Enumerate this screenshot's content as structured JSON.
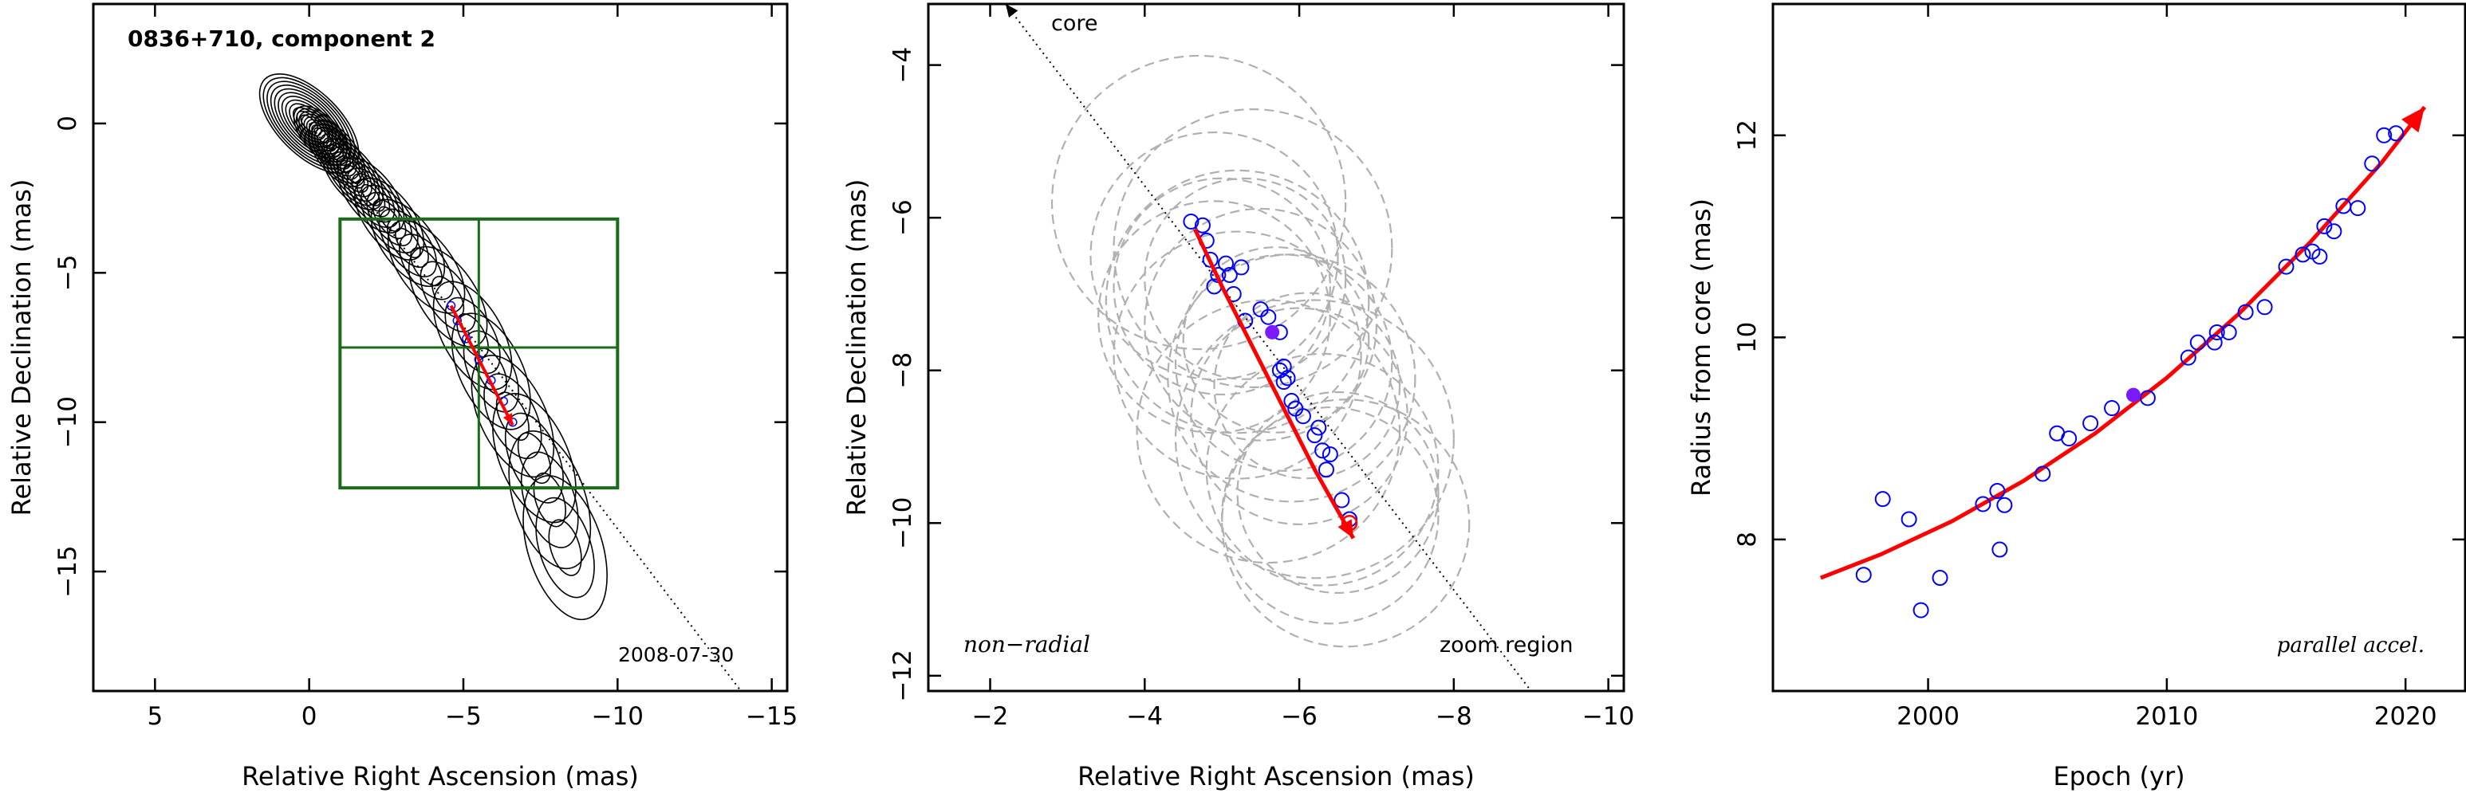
{
  "chart_data": [
    {
      "type": "contour",
      "title": "0836+710, component 2",
      "xlabel": "Relative Right Ascension (mas)",
      "ylabel": "Relative Declination (mas)",
      "xlim": [
        7,
        -15.5
      ],
      "ylim": [
        -19,
        4
      ],
      "xticks": [
        5,
        0,
        -5,
        -10,
        -15
      ],
      "xtick_labels": [
        "5",
        "0",
        "−5",
        "−10",
        "−15"
      ],
      "yticks": [
        0,
        -5,
        -10,
        -15
      ],
      "ytick_labels": [
        "0",
        "−5",
        "−10",
        "−15"
      ],
      "grid": false,
      "annotation": "2008-07-30",
      "jet_direction_line": {
        "from": [
          0,
          0
        ],
        "to": [
          -14,
          -19
        ]
      },
      "zoom_box": {
        "x": [
          -1,
          -10
        ],
        "y": [
          -3.2,
          -12.2
        ],
        "cross": {
          "x": -5.5,
          "y": -7.5
        }
      },
      "jet_ridge": {
        "x": [
          0,
          -0.4,
          -0.9,
          -1.4,
          -2.0,
          -2.6,
          -3.2,
          -3.8,
          -4.5,
          -5.3,
          -5.9,
          -6.6,
          -7.3,
          -7.8,
          -8.3
        ],
        "y": [
          0,
          -0.4,
          -1.0,
          -1.7,
          -2.4,
          -3.2,
          -4.0,
          -4.8,
          -5.8,
          -7.1,
          -8.3,
          -9.8,
          -11.2,
          -12.6,
          -14.2
        ]
      },
      "contour_levels": 12,
      "track": {
        "x": [
          -4.6,
          -4.8,
          -5.1,
          -5.5,
          -5.9,
          -6.3,
          -6.6
        ],
        "y": [
          -6.1,
          -6.6,
          -7.2,
          -7.9,
          -8.6,
          -9.3,
          -10.0
        ]
      },
      "arrow": {
        "x": [
          -4.6,
          -5.0,
          -5.5,
          -6.0,
          -6.6
        ],
        "y": [
          -6.1,
          -6.9,
          -7.9,
          -8.9,
          -10.1
        ],
        "color": "#ff0000"
      }
    },
    {
      "type": "scatter",
      "xlabel": "Relative Right Ascension (mas)",
      "ylabel": "Relative Declination (mas)",
      "xlim": [
        -1.2,
        -10.2
      ],
      "ylim": [
        -12.2,
        -3.2
      ],
      "xticks": [
        -2,
        -4,
        -6,
        -8,
        -10
      ],
      "xtick_labels": [
        "−2",
        "−4",
        "−6",
        "−8",
        "−10"
      ],
      "yticks": [
        -4,
        -6,
        -8,
        -10,
        -12
      ],
      "ytick_labels": [
        "−4",
        "−6",
        "−8",
        "−10",
        "−12"
      ],
      "grid": false,
      "annotations": [
        "core",
        "non−radial",
        "zoom region"
      ],
      "core_line": {
        "from": [
          -2.2,
          -3.2
        ],
        "to": [
          -9.0,
          -12.2
        ]
      },
      "points": {
        "x": [
          -4.6,
          -4.75,
          -4.8,
          -4.85,
          -4.9,
          -4.95,
          -5.05,
          -5.1,
          -5.15,
          -5.25,
          -5.3,
          -5.5,
          -5.6,
          -5.75,
          -5.75,
          -5.8,
          -5.8,
          -5.85,
          -5.9,
          -5.95,
          -6.05,
          -6.2,
          -6.25,
          -6.3,
          -6.35,
          -6.4,
          -6.55,
          -6.65
        ],
        "y": [
          -6.05,
          -6.1,
          -6.3,
          -6.55,
          -6.9,
          -6.75,
          -6.6,
          -6.75,
          -7.0,
          -6.65,
          -7.35,
          -7.2,
          -7.3,
          -7.5,
          -8.0,
          -7.95,
          -8.15,
          -8.1,
          -8.4,
          -8.5,
          -8.6,
          -8.85,
          -8.75,
          -9.05,
          -9.3,
          -9.1,
          -9.7,
          -9.95
        ],
        "color": "#0000ff"
      },
      "highlight_point": {
        "x": -5.65,
        "y": -7.5,
        "color": "#7a1bff"
      },
      "end_point": {
        "x": -6.65,
        "y": -10.0,
        "color": "#ff0000"
      },
      "uncertainty_circles": {
        "x": [
          -4.7,
          -4.9,
          -5.0,
          -5.2,
          -5.3,
          -5.5,
          -5.7,
          -5.9,
          -6.0,
          -6.2,
          -6.3,
          -6.5,
          -6.6,
          -5.4,
          -5.8,
          -6.1,
          -4.9,
          -5.6,
          -6.4,
          -5.2
        ],
        "y": [
          -5.8,
          -6.5,
          -6.9,
          -7.1,
          -6.8,
          -7.4,
          -7.6,
          -8.1,
          -8.6,
          -8.9,
          -9.3,
          -9.6,
          -10.0,
          -6.4,
          -7.9,
          -8.2,
          -7.3,
          -8.8,
          -9.9,
          -7.8
        ],
        "r": [
          1.9,
          1.6,
          1.4,
          1.7,
          1.3,
          1.5,
          1.2,
          1.6,
          1.4,
          1.8,
          1.5,
          1.3,
          1.6,
          1.8,
          1.4,
          1.2,
          1.5,
          1.7,
          1.4,
          1.6
        ],
        "color": "#b0b0b0"
      },
      "arrow": {
        "x": [
          -4.65,
          -5.0,
          -5.4,
          -5.8,
          -6.2,
          -6.7
        ],
        "y": [
          -6.15,
          -6.9,
          -7.7,
          -8.5,
          -9.3,
          -10.2
        ],
        "color": "#ff0000"
      }
    },
    {
      "type": "scatter",
      "xlabel": "Epoch (yr)",
      "ylabel": "Radius from core (mas)",
      "xlim": [
        1993.5,
        2022.5
      ],
      "ylim": [
        6.5,
        13.3
      ],
      "xticks": [
        2000,
        2010,
        2020
      ],
      "xtick_labels": [
        "2000",
        "2010",
        "2020"
      ],
      "yticks": [
        8,
        10,
        12
      ],
      "ytick_labels": [
        "8",
        "10",
        "12"
      ],
      "grid": false,
      "annotation": "parallel accel.",
      "points": {
        "x": [
          1997.3,
          1998.1,
          1999.2,
          1999.7,
          2000.5,
          2002.3,
          2002.9,
          2003.0,
          2003.2,
          2004.8,
          2005.4,
          2005.9,
          2006.8,
          2007.7,
          2009.2,
          2010.9,
          2011.3,
          2012.0,
          2012.1,
          2012.6,
          2013.3,
          2014.1,
          2015.0,
          2015.7,
          2016.1,
          2016.4,
          2016.6,
          2017.0,
          2017.4,
          2018.0,
          2018.6,
          2019.1,
          2019.6
        ],
        "y": [
          7.65,
          8.4,
          8.2,
          7.3,
          7.62,
          8.35,
          8.48,
          7.9,
          8.34,
          8.65,
          9.05,
          9.0,
          9.15,
          9.3,
          9.4,
          9.8,
          9.95,
          9.95,
          10.05,
          10.05,
          10.25,
          10.3,
          10.7,
          10.82,
          10.85,
          10.8,
          11.1,
          11.05,
          11.3,
          11.28,
          11.72,
          12.0,
          12.02
        ],
        "color": "#0000ff"
      },
      "highlight_point": {
        "x": 2008.6,
        "y": 9.43,
        "color": "#7a1bff"
      },
      "fit_curve": {
        "x": [
          1995.5,
          1998,
          2001,
          2004,
          2007,
          2010,
          2013,
          2016,
          2019,
          2020.8
        ],
        "y": [
          7.62,
          7.85,
          8.18,
          8.58,
          9.05,
          9.6,
          10.23,
          10.94,
          11.73,
          12.28
        ],
        "color": "#ff0000"
      }
    }
  ]
}
